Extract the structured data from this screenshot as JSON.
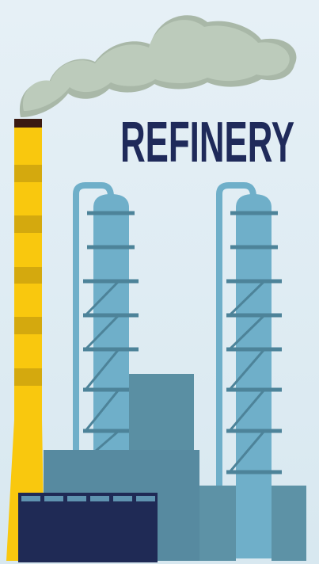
{
  "title": "REFINERY"
}
